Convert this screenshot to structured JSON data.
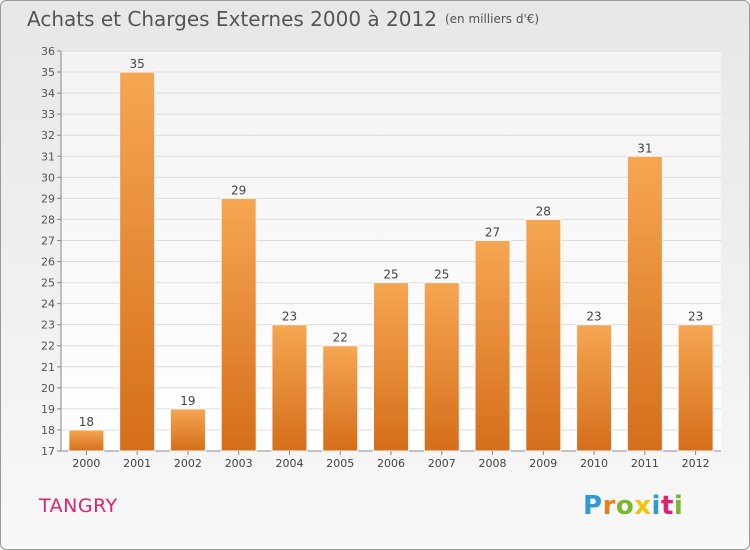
{
  "title": "Achats et Charges Externes 2000 à 2012",
  "unit": "(en milliers d'€)",
  "town": "TANGRY",
  "logo": {
    "letters": [
      "P",
      "r",
      "o",
      "x",
      "i",
      "t",
      "i"
    ],
    "colors": [
      "#2e9bd6",
      "#e67e22",
      "#7cb82f",
      "#f1c40f",
      "#2e9bd6",
      "#e0226e",
      "#7cb82f"
    ]
  },
  "colors": {
    "bar_top": "#f6a652",
    "bar_bottom": "#d56e1a",
    "title": "#555555",
    "town": "#e0226e"
  },
  "chart_data": {
    "type": "bar",
    "categories": [
      "2000",
      "2001",
      "2002",
      "2003",
      "2004",
      "2005",
      "2006",
      "2007",
      "2008",
      "2009",
      "2010",
      "2011",
      "2012"
    ],
    "values": [
      18,
      35,
      19,
      29,
      23,
      22,
      25,
      25,
      27,
      28,
      23,
      31,
      23
    ],
    "value_labels": [
      "18",
      "35",
      "19",
      "29",
      "23",
      "22",
      "25",
      "25",
      "27",
      "28",
      "23",
      "31",
      "23"
    ],
    "ylim": [
      17,
      36
    ],
    "yticks": [
      17,
      18,
      19,
      20,
      21,
      22,
      23,
      24,
      25,
      26,
      27,
      28,
      29,
      30,
      31,
      32,
      33,
      34,
      35,
      36
    ],
    "grid": true,
    "legend": "none"
  }
}
